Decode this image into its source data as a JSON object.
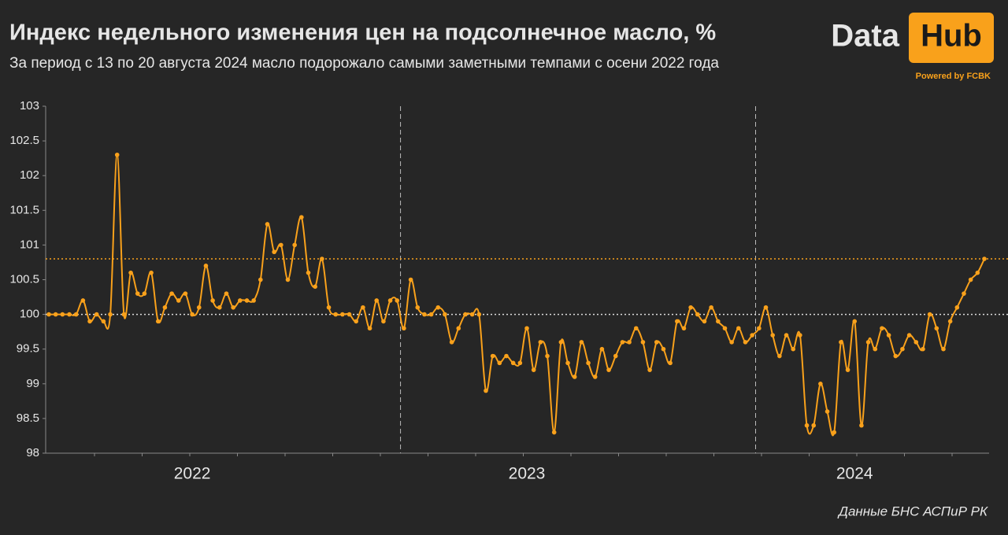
{
  "chart_data": {
    "type": "line",
    "title": "Индекс недельного изменения цен на подсолнечное масло, %",
    "subtitle": "За период с 13 по 20 августа 2024 масло подорожало самыми заметными темпами с осени 2022 года",
    "logo": {
      "left": "Data",
      "right": "Hub",
      "tagline": "Powered by FCBK"
    },
    "source": "Данные БНС АСПиР РК",
    "color": "#f9a11b",
    "ylim": [
      98,
      103
    ],
    "yticks": [
      98,
      98.5,
      99,
      99.5,
      100,
      100.5,
      101,
      101.5,
      102,
      102.5,
      103
    ],
    "reference_lines": [
      100,
      100.8
    ],
    "categories": [
      null,
      null,
      null,
      null,
      null,
      null,
      null,
      null,
      null,
      null,
      null,
      null,
      null,
      null,
      null,
      null,
      null,
      null,
      null,
      null,
      null,
      "2022",
      null,
      null,
      null,
      null,
      null,
      null,
      null,
      null,
      null,
      null,
      null,
      null,
      null,
      null,
      null,
      null,
      null,
      null,
      null,
      null,
      null,
      null,
      null,
      null,
      null,
      null,
      null,
      null,
      null,
      null,
      null,
      null,
      null,
      null,
      null,
      null,
      null,
      null,
      null,
      null,
      null,
      null,
      null,
      null,
      null,
      null,
      null,
      null,
      "2023",
      null,
      null,
      null,
      null,
      null,
      null,
      null,
      null,
      null,
      null,
      null,
      null,
      null,
      null,
      null,
      null,
      null,
      null,
      null,
      null,
      null,
      null,
      null,
      null,
      null,
      null,
      null,
      null,
      null,
      null,
      null,
      null,
      null,
      null,
      null,
      null,
      null,
      null,
      null,
      null,
      null,
      null,
      null,
      null,
      null,
      null,
      null,
      "2024",
      null,
      null,
      null,
      null,
      null,
      null,
      null,
      null,
      null,
      null,
      null,
      null,
      null,
      null,
      null,
      null,
      null,
      null,
      null
    ],
    "values": [
      100,
      100,
      100,
      100,
      100,
      100.2,
      99.9,
      100,
      99.9,
      100,
      102.3,
      100,
      100.6,
      100.3,
      100.3,
      100.6,
      99.9,
      100.1,
      100.3,
      100.2,
      100.3,
      100,
      100.1,
      100.7,
      100.2,
      100.1,
      100.3,
      100.1,
      100.2,
      100.2,
      100.2,
      100.5,
      101.3,
      100.9,
      101.0,
      100.5,
      101.0,
      101.4,
      100.6,
      100.4,
      100.8,
      100.1,
      100,
      100,
      100,
      99.9,
      100.1,
      99.8,
      100.2,
      99.9,
      100.2,
      100.2,
      99.8,
      100.5,
      100.1,
      100,
      100,
      100.1,
      100,
      99.6,
      99.8,
      100,
      100,
      100,
      98.9,
      99.4,
      99.3,
      99.4,
      99.3,
      99.3,
      99.8,
      99.2,
      99.6,
      99.4,
      98.3,
      99.6,
      99.3,
      99.1,
      99.6,
      99.3,
      99.1,
      99.5,
      99.2,
      99.4,
      99.6,
      99.6,
      99.8,
      99.6,
      99.2,
      99.6,
      99.5,
      99.3,
      99.9,
      99.8,
      100.1,
      100,
      99.9,
      100.1,
      99.9,
      99.8,
      99.6,
      99.8,
      99.6,
      99.7,
      99.8,
      100.1,
      99.7,
      99.4,
      99.7,
      99.5,
      99.7,
      98.4,
      98.4,
      99.0,
      98.6,
      98.3,
      99.6,
      99.2,
      99.9,
      98.4,
      99.6,
      99.5,
      99.8,
      99.7,
      99.4,
      99.5,
      99.7,
      99.6,
      99.5,
      100,
      99.8,
      99.5,
      99.9,
      100.1,
      100.3,
      100.5,
      100.6,
      100.8
    ]
  }
}
